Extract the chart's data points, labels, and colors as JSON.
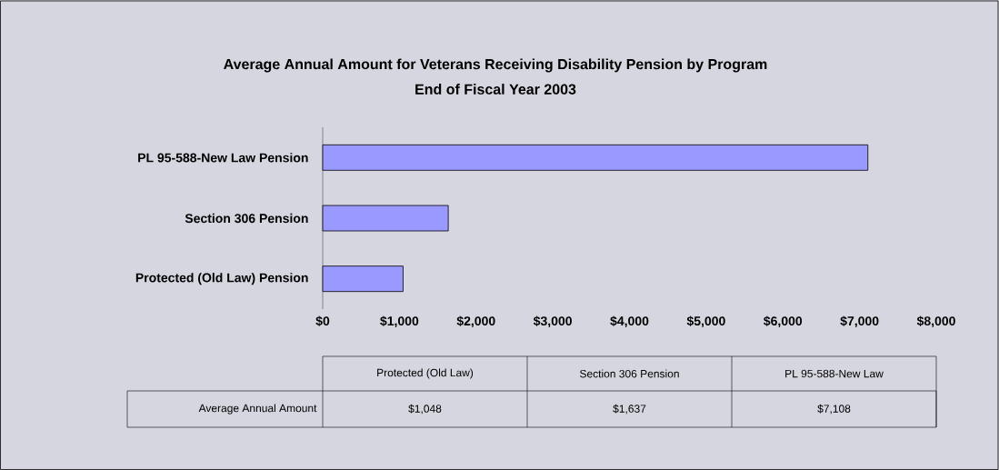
{
  "chart_data": {
    "type": "bar",
    "orientation": "horizontal",
    "title": "Average Annual Amount for Veterans Receiving Disability Pension by Program",
    "subtitle": "End of Fiscal Year 2003",
    "categories": [
      "PL 95-588-New Law Pension",
      "Section 306 Pension",
      "Protected (Old Law) Pension"
    ],
    "values": [
      7108,
      1637,
      1048
    ],
    "color": "#9999ff",
    "xlim": [
      0,
      8000
    ],
    "xticks": [
      {
        "value": 0,
        "label": "$0"
      },
      {
        "value": 1000,
        "label": "$1,000"
      },
      {
        "value": 2000,
        "label": "$2,000"
      },
      {
        "value": 3000,
        "label": "$3,000"
      },
      {
        "value": 4000,
        "label": "$4,000"
      },
      {
        "value": 5000,
        "label": "$5,000"
      },
      {
        "value": 6000,
        "label": "$6,000"
      },
      {
        "value": 7000,
        "label": "$7,000"
      },
      {
        "value": 8000,
        "label": "$8,000"
      }
    ],
    "annotations": [
      "Protected (Old Law)",
      "Section 306 Pension",
      "PL 95-588-New Law",
      "Average Annual Amount",
      "$1,048",
      "$1,637",
      "$7,108"
    ]
  }
}
